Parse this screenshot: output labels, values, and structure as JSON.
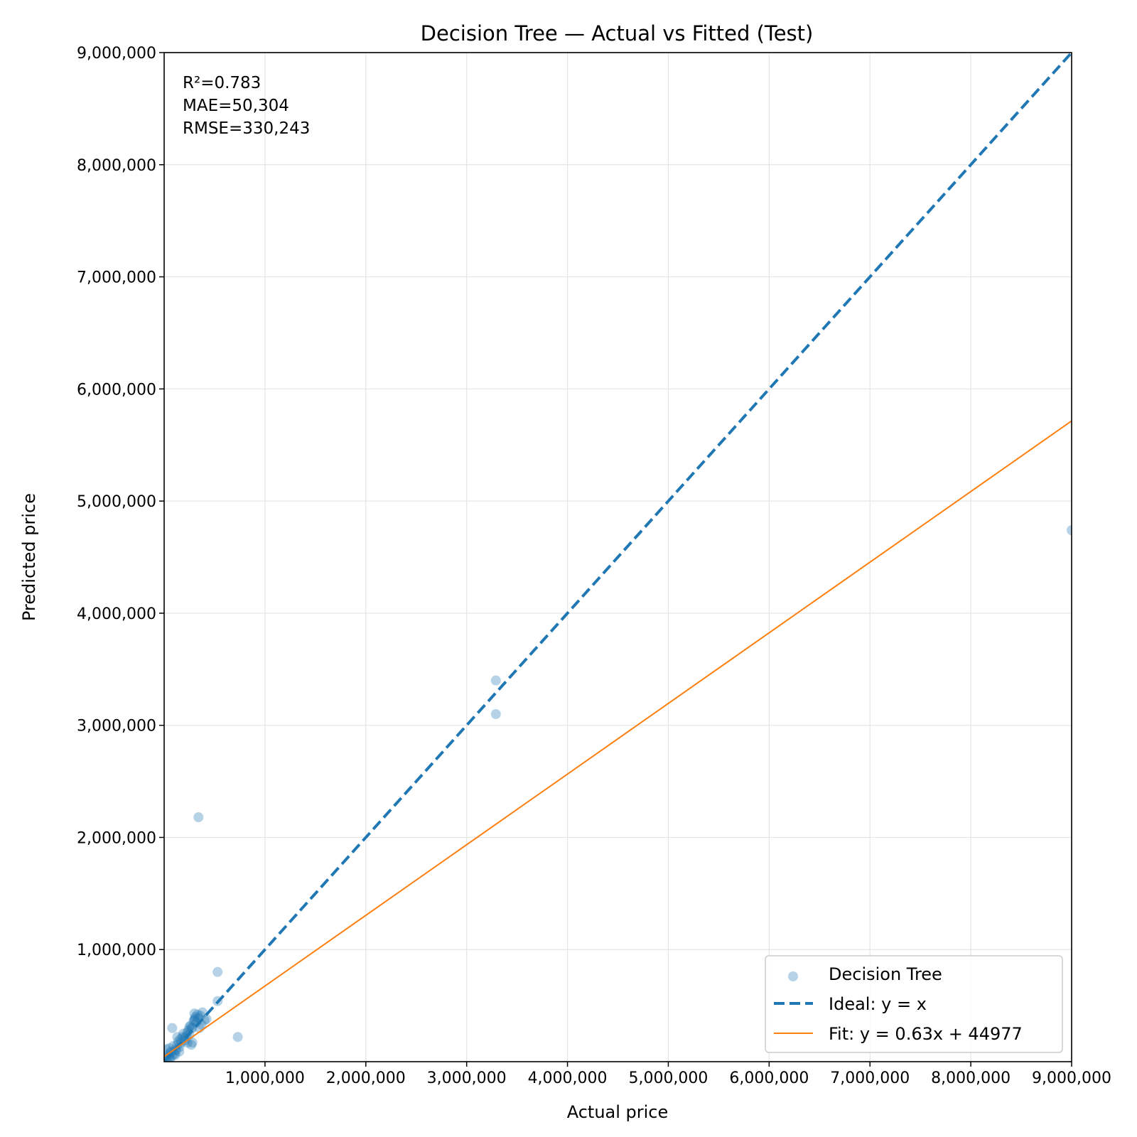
{
  "chart_data": {
    "type": "scatter",
    "title": "Decision Tree — Actual vs Fitted (Test)",
    "xlabel": "Actual price",
    "ylabel": "Predicted price",
    "xlim": [
      0,
      9000000
    ],
    "ylim": [
      0,
      9000000
    ],
    "x_ticks": [
      1000000,
      2000000,
      3000000,
      4000000,
      5000000,
      6000000,
      7000000,
      8000000,
      9000000
    ],
    "x_tick_labels": [
      "1,000,000",
      "2,000,000",
      "3,000,000",
      "4,000,000",
      "5,000,000",
      "6,000,000",
      "7,000,000",
      "8,000,000",
      "9,000,000"
    ],
    "y_ticks": [
      1000000,
      2000000,
      3000000,
      4000000,
      5000000,
      6000000,
      7000000,
      8000000,
      9000000
    ],
    "y_tick_labels": [
      "1,000,000",
      "2,000,000",
      "3,000,000",
      "4,000,000",
      "5,000,000",
      "6,000,000",
      "7,000,000",
      "8,000,000",
      "9,000,000"
    ],
    "grid": true,
    "legend_position": "bottom-right",
    "stats": [
      "R²=0.783",
      "MAE=50,304",
      "RMSE=330,243"
    ],
    "series": [
      {
        "name": "Decision Tree",
        "kind": "scatter",
        "color": "#1f77b4",
        "points": [
          [
            10000,
            20000
          ],
          [
            20000,
            40000
          ],
          [
            30000,
            10000
          ],
          [
            40000,
            60000
          ],
          [
            50000,
            120000
          ],
          [
            60000,
            30000
          ],
          [
            70000,
            90000
          ],
          [
            80000,
            50000
          ],
          [
            90000,
            140000
          ],
          [
            100000,
            70000
          ],
          [
            110000,
            110000
          ],
          [
            120000,
            100000
          ],
          [
            130000,
            150000
          ],
          [
            140000,
            180000
          ],
          [
            150000,
            130000
          ],
          [
            160000,
            200000
          ],
          [
            170000,
            170000
          ],
          [
            180000,
            220000
          ],
          [
            190000,
            250000
          ],
          [
            200000,
            210000
          ],
          [
            210000,
            190000
          ],
          [
            220000,
            230000
          ],
          [
            230000,
            260000
          ],
          [
            240000,
            280000
          ],
          [
            250000,
            240000
          ],
          [
            260000,
            320000
          ],
          [
            270000,
            300000
          ],
          [
            280000,
            170000
          ],
          [
            290000,
            360000
          ],
          [
            300000,
            380000
          ],
          [
            310000,
            400000
          ],
          [
            320000,
            350000
          ],
          [
            330000,
            420000
          ],
          [
            340000,
            390000
          ],
          [
            350000,
            300000
          ],
          [
            360000,
            410000
          ],
          [
            370000,
            330000
          ],
          [
            380000,
            440000
          ],
          [
            400000,
            370000
          ],
          [
            420000,
            380000
          ],
          [
            80000,
            300000
          ],
          [
            130000,
            220000
          ],
          [
            250000,
            310000
          ],
          [
            280000,
            300000
          ],
          [
            300000,
            430000
          ],
          [
            300000,
            370000
          ],
          [
            340000,
            2180000
          ],
          [
            530000,
            800000
          ],
          [
            530000,
            540000
          ],
          [
            730000,
            220000
          ],
          [
            3290000,
            3400000
          ],
          [
            3290000,
            3100000
          ],
          [
            9000000,
            4740000
          ],
          [
            20000,
            110000
          ],
          [
            60000,
            80000
          ],
          [
            150000,
            90000
          ],
          [
            230000,
            170000
          ],
          [
            270000,
            150000
          ],
          [
            110000,
            60000
          ],
          [
            50000,
            40000
          ]
        ]
      },
      {
        "name": "Ideal: y = x",
        "kind": "line",
        "color": "#1f77b4",
        "dash": "dashed",
        "x": [
          0,
          9000000
        ],
        "y": [
          0,
          9000000
        ]
      },
      {
        "name": "Fit: y = 0.63x + 44977",
        "kind": "line",
        "color": "#ff7f0e",
        "slope": 0.63,
        "intercept": 44977,
        "x": [
          0,
          9000000
        ]
      }
    ]
  }
}
